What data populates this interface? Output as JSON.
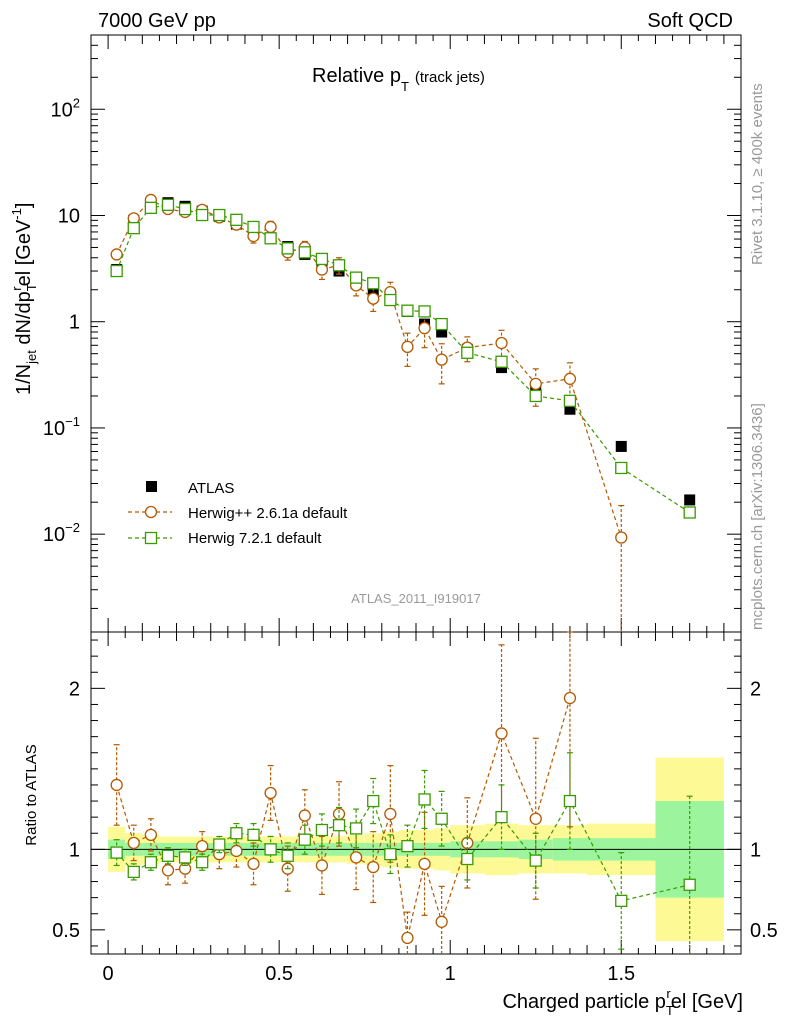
{
  "header": {
    "beam": "7000 GeV pp",
    "process": "Soft QCD"
  },
  "side_labels": {
    "rivet": "Rivet 3.1.10, ≥ 400k events",
    "site": "mcplots.cern.ch [arXiv:1306.3436]"
  },
  "chart_data": [
    {
      "type": "scatter",
      "panel": "main",
      "title": "Relative p_T (track jets)",
      "title_parts": {
        "main": "Relative p",
        "sub": "T",
        "tail": "(track jets)"
      },
      "ylabel": "1/N_jet dN/dp_T^rel [GeV^-1]",
      "ylabel_parts": {
        "a": "1/N",
        "a_sub": "jet",
        "b": " dN/dp",
        "b_sub": "T",
        "b_sup": "r",
        "c": "el [GeV",
        "c_sup": "-1",
        "d": "]"
      },
      "yscale": "log",
      "ylim": [
        0.0012,
        500
      ],
      "xlim": [
        -0.05,
        1.85
      ],
      "yticks": [
        0.01,
        0.1,
        1,
        10,
        100
      ],
      "ytick_labels": [
        {
          "base": "10",
          "sup": "−2"
        },
        {
          "base": "10",
          "sup": "−1"
        },
        {
          "base": "1",
          "sup": ""
        },
        {
          "base": "10",
          "sup": ""
        },
        {
          "base": "10",
          "sup": "2"
        }
      ],
      "watermark": "ATLAS_2011_I919017",
      "legend": {
        "position": "lower-left",
        "entries": [
          "ATLAS",
          "Herwig++ 2.6.1a default",
          "Herwig 7.2.1 default"
        ]
      },
      "series": [
        {
          "name": "ATLAS",
          "color": "#000000",
          "marker": "filled-square",
          "x": [
            0.025,
            0.075,
            0.125,
            0.175,
            0.225,
            0.275,
            0.325,
            0.375,
            0.425,
            0.475,
            0.525,
            0.575,
            0.625,
            0.675,
            0.725,
            0.775,
            0.825,
            0.875,
            0.925,
            0.975,
            1.05,
            1.15,
            1.25,
            1.35,
            1.5,
            1.7
          ],
          "y": [
            3.1,
            9.0,
            12.8,
            13.2,
            12.2,
            11.0,
            9.8,
            8.3,
            7.2,
            6.1,
            5.1,
            4.3,
            3.5,
            3.0,
            2.3,
            1.85,
            1.6,
            1.25,
            0.95,
            0.8,
            0.55,
            0.37,
            0.22,
            0.15,
            0.067,
            0.021
          ]
        },
        {
          "name": "Herwig++ 2.6.1a default",
          "color": "#b35900",
          "marker": "open-circle",
          "x": [
            0.025,
            0.075,
            0.125,
            0.175,
            0.225,
            0.275,
            0.325,
            0.375,
            0.425,
            0.475,
            0.525,
            0.575,
            0.625,
            0.675,
            0.725,
            0.775,
            0.825,
            0.875,
            0.925,
            0.975,
            1.05,
            1.15,
            1.25,
            1.35,
            1.5
          ],
          "y": [
            4.3,
            9.4,
            14.0,
            11.5,
            10.8,
            11.3,
            9.6,
            8.2,
            6.4,
            7.8,
            4.5,
            5.0,
            3.1,
            3.4,
            2.2,
            1.65,
            1.9,
            0.58,
            0.87,
            0.44,
            0.57,
            0.63,
            0.26,
            0.29,
            0.0093
          ],
          "yerr": [
            0.45,
            0.7,
            1.1,
            0.8,
            0.8,
            0.8,
            0.8,
            0.8,
            0.9,
            1.0,
            0.7,
            0.7,
            0.6,
            0.6,
            0.45,
            0.4,
            0.45,
            0.2,
            0.3,
            0.18,
            0.15,
            0.2,
            0.1,
            0.12,
            0.0093
          ]
        },
        {
          "name": "Herwig 7.2.1 default",
          "color": "#3a9a00",
          "marker": "open-square",
          "x": [
            0.025,
            0.075,
            0.125,
            0.175,
            0.225,
            0.275,
            0.325,
            0.375,
            0.425,
            0.475,
            0.525,
            0.575,
            0.625,
            0.675,
            0.725,
            0.775,
            0.825,
            0.875,
            0.925,
            0.975,
            1.05,
            1.15,
            1.25,
            1.35,
            1.5,
            1.7
          ],
          "y": [
            3.0,
            7.6,
            11.8,
            12.6,
            11.5,
            10.1,
            10.1,
            9.1,
            7.8,
            6.1,
            4.9,
            4.5,
            3.9,
            3.4,
            2.6,
            2.3,
            1.6,
            1.27,
            1.25,
            0.95,
            0.51,
            0.42,
            0.2,
            0.18,
            0.042,
            0.016
          ]
        }
      ]
    },
    {
      "type": "scatter",
      "panel": "ratio",
      "ylabel": "Ratio to ATLAS",
      "xlabel": "Charged particle p_T^rel [GeV]",
      "xlabel_parts": {
        "a": "Charged particle p",
        "sub": "T",
        "sup": "r",
        "b": "el [GeV]"
      },
      "ylim": [
        0.35,
        2.35
      ],
      "xlim": [
        -0.05,
        1.85
      ],
      "yticks": [
        0.5,
        1,
        2
      ],
      "ytick_labels": [
        "0.5",
        "1",
        "2"
      ],
      "xticks": [
        0,
        0.5,
        1,
        1.5
      ],
      "xtick_labels": [
        "0",
        "0.5",
        "1",
        "1.5"
      ],
      "bands": {
        "bin_edges": [
          0.0,
          0.05,
          0.1,
          0.15,
          0.2,
          0.25,
          0.3,
          0.35,
          0.4,
          0.45,
          0.5,
          0.55,
          0.6,
          0.65,
          0.7,
          0.75,
          0.8,
          0.85,
          0.9,
          0.95,
          1.0,
          1.1,
          1.2,
          1.3,
          1.4,
          1.6,
          1.8
        ],
        "stat_halfwidth": [
          0.06,
          0.04,
          0.04,
          0.04,
          0.04,
          0.04,
          0.04,
          0.04,
          0.04,
          0.04,
          0.04,
          0.04,
          0.04,
          0.04,
          0.04,
          0.04,
          0.04,
          0.04,
          0.04,
          0.04,
          0.05,
          0.05,
          0.06,
          0.07,
          0.07,
          0.3
        ],
        "syst_halfwidth": [
          0.14,
          0.1,
          0.09,
          0.08,
          0.08,
          0.08,
          0.08,
          0.08,
          0.08,
          0.08,
          0.08,
          0.08,
          0.08,
          0.08,
          0.09,
          0.1,
          0.11,
          0.12,
          0.12,
          0.13,
          0.15,
          0.16,
          0.15,
          0.15,
          0.16,
          0.57
        ],
        "stat_color": "#9cf59c",
        "syst_color": "#fdfa96"
      },
      "series": [
        {
          "name": "Herwig++ 2.6.1a default",
          "color": "#b35900",
          "marker": "open-circle",
          "x": [
            0.025,
            0.075,
            0.125,
            0.175,
            0.225,
            0.275,
            0.325,
            0.375,
            0.425,
            0.475,
            0.525,
            0.575,
            0.625,
            0.675,
            0.725,
            0.775,
            0.825,
            0.875,
            0.925,
            0.975,
            1.05,
            1.15,
            1.25,
            1.35
          ],
          "y": [
            1.4,
            1.04,
            1.09,
            0.87,
            0.88,
            1.02,
            0.97,
            0.99,
            0.91,
            1.35,
            0.88,
            1.21,
            0.9,
            1.22,
            0.95,
            0.89,
            1.22,
            0.45,
            0.91,
            0.55,
            1.04,
            1.72,
            1.19,
            1.94
          ],
          "yerr": [
            0.25,
            0.11,
            0.1,
            0.09,
            0.09,
            0.09,
            0.09,
            0.1,
            0.13,
            0.17,
            0.14,
            0.16,
            0.18,
            0.2,
            0.2,
            0.22,
            0.3,
            0.16,
            0.32,
            0.22,
            0.28,
            0.55,
            0.5,
            0.8
          ]
        },
        {
          "name": "Herwig 7.2.1 default",
          "color": "#3a9a00",
          "marker": "open-square",
          "x": [
            0.025,
            0.075,
            0.125,
            0.175,
            0.225,
            0.275,
            0.325,
            0.375,
            0.425,
            0.475,
            0.525,
            0.575,
            0.625,
            0.675,
            0.725,
            0.775,
            0.825,
            0.875,
            0.925,
            0.975,
            1.05,
            1.15,
            1.25,
            1.35,
            1.5,
            1.7
          ],
          "y": [
            0.98,
            0.86,
            0.92,
            0.96,
            0.95,
            0.92,
            1.03,
            1.1,
            1.09,
            1.0,
            0.96,
            1.06,
            1.12,
            1.15,
            1.13,
            1.3,
            0.97,
            1.02,
            1.31,
            1.19,
            0.94,
            1.2,
            0.93,
            1.3,
            0.68,
            0.78
          ],
          "yerr": [
            0.08,
            0.05,
            0.05,
            0.05,
            0.05,
            0.05,
            0.05,
            0.06,
            0.07,
            0.08,
            0.08,
            0.09,
            0.1,
            0.11,
            0.12,
            0.14,
            0.12,
            0.13,
            0.18,
            0.17,
            0.13,
            0.2,
            0.17,
            0.3,
            0.3,
            0.55
          ]
        }
      ]
    }
  ]
}
